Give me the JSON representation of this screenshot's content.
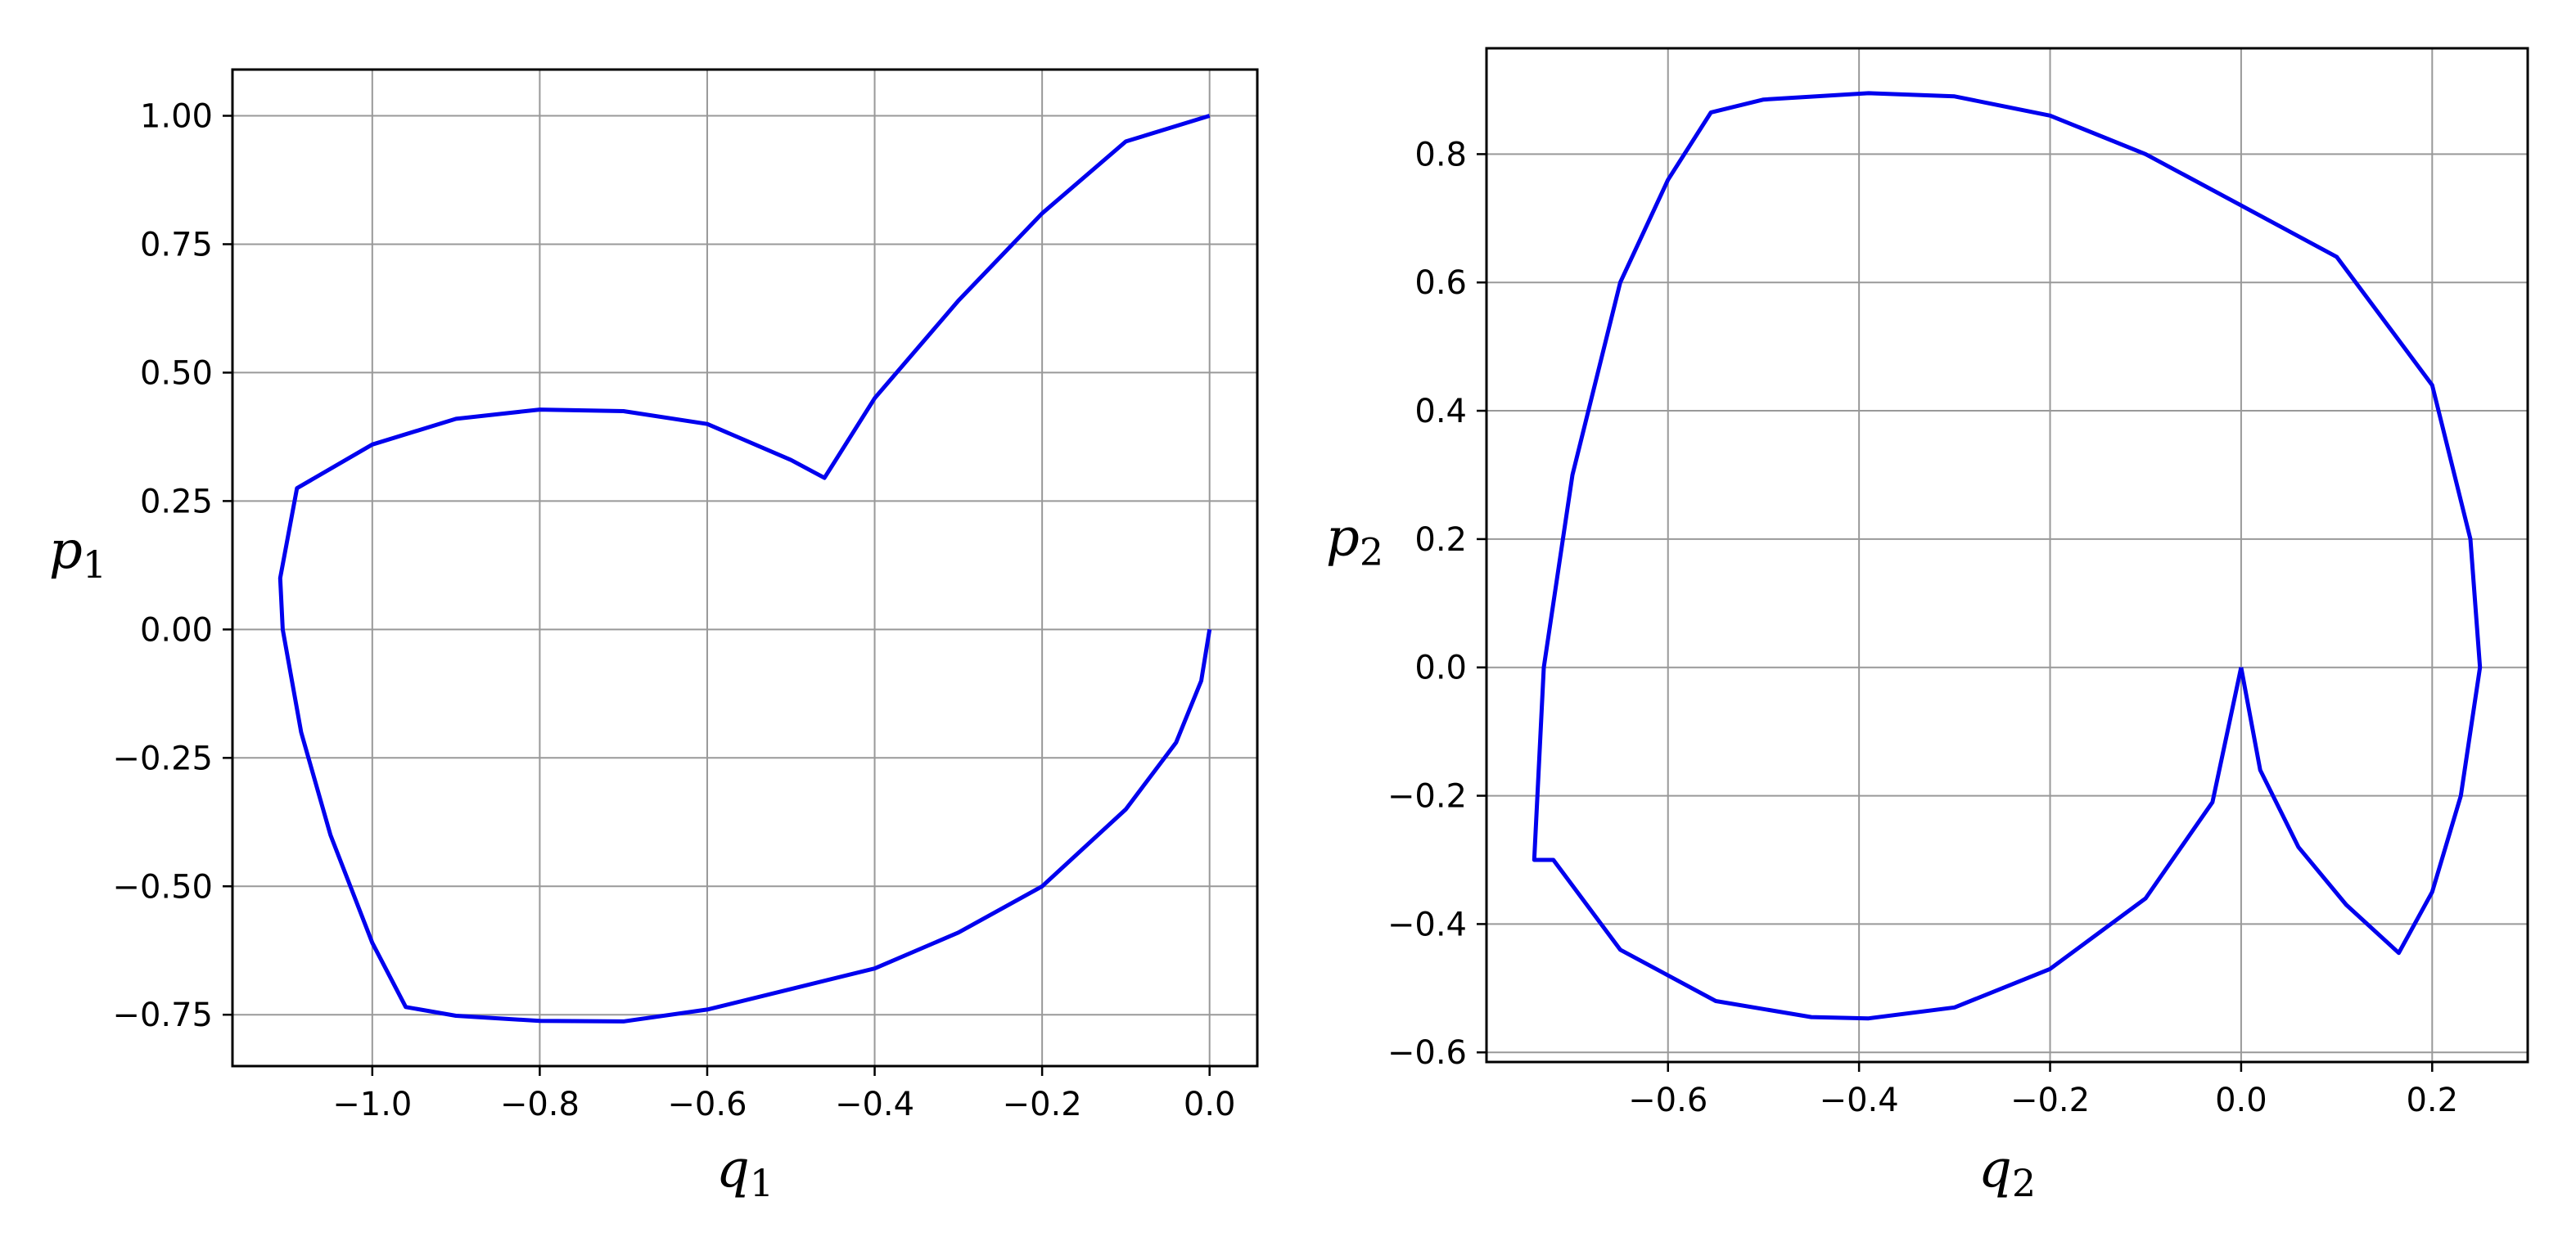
{
  "chart_data": [
    {
      "type": "line",
      "title": "",
      "xlabel": "q",
      "xlabel_sub": "1",
      "ylabel": "p",
      "ylabel_sub": "1",
      "xlim": [
        -1.167,
        0.057
      ],
      "ylim": [
        -0.85,
        1.09
      ],
      "xticks": [
        -1.0,
        -0.8,
        -0.6,
        -0.4,
        -0.2,
        0.0
      ],
      "xtick_labels": [
        "−1.0",
        "−0.8",
        "−0.6",
        "−0.4",
        "−0.2",
        "0.0"
      ],
      "yticks": [
        -0.75,
        -0.5,
        -0.25,
        0.0,
        0.25,
        0.5,
        0.75,
        1.0
      ],
      "ytick_labels": [
        "−0.75",
        "−0.50",
        "−0.25",
        "0.00",
        "0.25",
        "0.50",
        "0.75",
        "1.00"
      ],
      "grid": true,
      "series": [
        {
          "color": "#0000ee",
          "x": [
            0.0,
            -0.1,
            -0.2,
            -0.3,
            -0.4,
            -0.46,
            -0.5,
            -0.6,
            -0.7,
            -0.8,
            -0.9,
            -1.0,
            -1.09,
            -1.11,
            -1.107,
            -1.085,
            -1.05,
            -1.0,
            -0.96,
            -0.9,
            -0.8,
            -0.7,
            -0.6,
            -0.5,
            -0.4,
            -0.3,
            -0.2,
            -0.1,
            -0.04,
            -0.01,
            0.0
          ],
          "y": [
            1.0,
            0.95,
            0.81,
            0.64,
            0.45,
            0.295,
            0.33,
            0.4,
            0.425,
            0.428,
            0.41,
            0.36,
            0.275,
            0.1,
            0.0,
            -0.2,
            -0.4,
            -0.61,
            -0.735,
            -0.752,
            -0.762,
            -0.763,
            -0.74,
            -0.7,
            -0.66,
            -0.59,
            -0.5,
            -0.35,
            -0.22,
            -0.1,
            0.0
          ]
        }
      ]
    },
    {
      "type": "line",
      "title": "",
      "xlabel": "q",
      "xlabel_sub": "2",
      "ylabel": "p",
      "ylabel_sub": "2",
      "xlim": [
        -0.79,
        0.3
      ],
      "ylim": [
        -0.615,
        0.965
      ],
      "xticks": [
        -0.6,
        -0.4,
        -0.2,
        0.0,
        0.2
      ],
      "xtick_labels": [
        "−0.6",
        "−0.4",
        "−0.2",
        "0.0",
        "0.2"
      ],
      "yticks": [
        -0.6,
        -0.4,
        -0.2,
        0.0,
        0.2,
        0.4,
        0.6,
        0.8
      ],
      "ytick_labels": [
        "−0.6",
        "−0.4",
        "−0.2",
        "0.0",
        "0.2",
        "0.4",
        "0.6",
        "0.8"
      ],
      "grid": true,
      "series": [
        {
          "color": "#0000ee",
          "x": [
            0.0,
            0.02,
            0.06,
            0.11,
            0.165,
            0.2,
            0.23,
            0.25,
            0.24,
            0.2,
            0.1,
            0.0,
            -0.1,
            -0.2,
            -0.3,
            -0.39,
            -0.5,
            -0.555,
            -0.6,
            -0.65,
            -0.7,
            -0.73,
            -0.74,
            -0.72,
            -0.65,
            -0.55,
            -0.45,
            -0.39,
            -0.3,
            -0.2,
            -0.1,
            -0.03,
            0.0
          ],
          "y": [
            0.0,
            -0.16,
            -0.28,
            -0.37,
            -0.445,
            -0.35,
            -0.2,
            0.0,
            0.2,
            0.44,
            0.64,
            0.72,
            0.8,
            0.86,
            0.89,
            0.895,
            0.885,
            0.865,
            0.76,
            0.6,
            0.3,
            0.0,
            -0.3,
            -0.3,
            -0.44,
            -0.52,
            -0.545,
            -0.547,
            -0.53,
            -0.47,
            -0.36,
            -0.21,
            0.0
          ]
        }
      ]
    }
  ]
}
